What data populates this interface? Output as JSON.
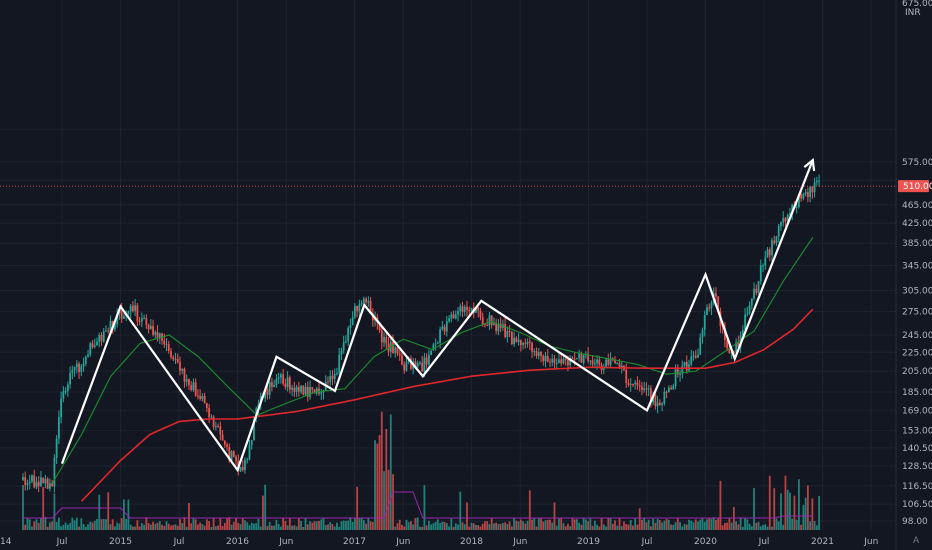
{
  "chart_data": {
    "type": "candlestick",
    "currency": "INR",
    "scale": "log",
    "ylim": [
      98,
      675
    ],
    "y_ticks": [
      "675.00",
      "575.00",
      "525.00",
      "465.00",
      "425.00",
      "385.00",
      "345.00",
      "305.00",
      "275.00",
      "245.00",
      "225.00",
      "205.00",
      "185.00",
      "169.00",
      "153.00",
      "140.50",
      "128.50",
      "116.50",
      "106.50",
      "98.00"
    ],
    "x_ticks": [
      "14",
      "Jul",
      "2015",
      "Jul",
      "2016",
      "Jun",
      "2017",
      "Jun",
      "2018",
      "Jun",
      "2019",
      "Jul",
      "2020",
      "Jul",
      "2021",
      "Jun"
    ],
    "last_price": "510.00",
    "colors": {
      "background": "#131722",
      "grid": "#1e222d",
      "up": "#26a69a",
      "down": "#ef5350",
      "ma_short": "#1b8f2e",
      "ma_long": "#e0272b",
      "volume_ma": "#9c27b0",
      "pattern": "#ffffff",
      "price_line": "#ef5350"
    },
    "close_anchors": [
      [
        "2014-03",
        120
      ],
      [
        "2014-06",
        118
      ],
      [
        "2014-07",
        185
      ],
      [
        "2014-10",
        232
      ],
      [
        "2015-01",
        272
      ],
      [
        "2015-02",
        282
      ],
      [
        "2015-05",
        240
      ],
      [
        "2015-08",
        195
      ],
      [
        "2015-10",
        168
      ],
      [
        "2016-01",
        126
      ],
      [
        "2016-02",
        130
      ],
      [
        "2016-03",
        175
      ],
      [
        "2016-05",
        200
      ],
      [
        "2016-07",
        190
      ],
      [
        "2016-09",
        185
      ],
      [
        "2016-11",
        200
      ],
      [
        "2017-01",
        280
      ],
      [
        "2017-02",
        292
      ],
      [
        "2017-04",
        240
      ],
      [
        "2017-06",
        212
      ],
      [
        "2017-08",
        210
      ],
      [
        "2017-10",
        255
      ],
      [
        "2017-12",
        282
      ],
      [
        "2018-03",
        262
      ],
      [
        "2018-06",
        234
      ],
      [
        "2018-09",
        216
      ],
      [
        "2018-12",
        218
      ],
      [
        "2019-04",
        210
      ],
      [
        "2019-05",
        198
      ],
      [
        "2019-07",
        185
      ],
      [
        "2019-08",
        172
      ],
      [
        "2019-10",
        202
      ],
      [
        "2019-12",
        218
      ],
      [
        "2020-01",
        268
      ],
      [
        "2020-02",
        300
      ],
      [
        "2020-03",
        235
      ],
      [
        "2020-04",
        225
      ],
      [
        "2020-05",
        262
      ],
      [
        "2020-07",
        350
      ],
      [
        "2020-09",
        430
      ],
      [
        "2020-11",
        490
      ],
      [
        "2020-12",
        510
      ]
    ],
    "ma_short": [
      [
        "2014-06",
        118
      ],
      [
        "2014-09",
        150
      ],
      [
        "2014-12",
        200
      ],
      [
        "2015-03",
        235
      ],
      [
        "2015-06",
        245
      ],
      [
        "2015-09",
        220
      ],
      [
        "2015-12",
        190
      ],
      [
        "2016-03",
        165
      ],
      [
        "2016-06",
        175
      ],
      [
        "2016-09",
        185
      ],
      [
        "2016-12",
        188
      ],
      [
        "2017-03",
        220
      ],
      [
        "2017-06",
        240
      ],
      [
        "2017-09",
        228
      ],
      [
        "2017-12",
        248
      ],
      [
        "2018-03",
        262
      ],
      [
        "2018-06",
        248
      ],
      [
        "2018-09",
        232
      ],
      [
        "2018-12",
        224
      ],
      [
        "2019-03",
        218
      ],
      [
        "2019-06",
        212
      ],
      [
        "2019-09",
        202
      ],
      [
        "2019-12",
        205
      ],
      [
        "2020-03",
        226
      ],
      [
        "2020-06",
        250
      ],
      [
        "2020-09",
        320
      ],
      [
        "2020-12",
        396
      ]
    ],
    "ma_long": [
      [
        "2014-09",
        108
      ],
      [
        "2015-01",
        132
      ],
      [
        "2015-04",
        150
      ],
      [
        "2015-07",
        160
      ],
      [
        "2015-10",
        162
      ],
      [
        "2016-01",
        162
      ],
      [
        "2016-07",
        168
      ],
      [
        "2017-01",
        178
      ],
      [
        "2017-07",
        190
      ],
      [
        "2018-01",
        200
      ],
      [
        "2018-07",
        206
      ],
      [
        "2019-01",
        209
      ],
      [
        "2019-07",
        208
      ],
      [
        "2020-01",
        208
      ],
      [
        "2020-04",
        214
      ],
      [
        "2020-07",
        228
      ],
      [
        "2020-10",
        252
      ],
      [
        "2020-12",
        278
      ]
    ],
    "pattern_points": [
      [
        "2014-07",
        130
      ],
      [
        "2015-01",
        282
      ],
      [
        "2016-01",
        126
      ],
      [
        "2016-05",
        220
      ],
      [
        "2016-11",
        186
      ],
      [
        "2017-02",
        284
      ],
      [
        "2017-08",
        200
      ],
      [
        "2018-02",
        290
      ],
      [
        "2019-07",
        169
      ],
      [
        "2020-01",
        330
      ],
      [
        "2020-04",
        218
      ],
      [
        "2020-12",
        580
      ]
    ]
  }
}
